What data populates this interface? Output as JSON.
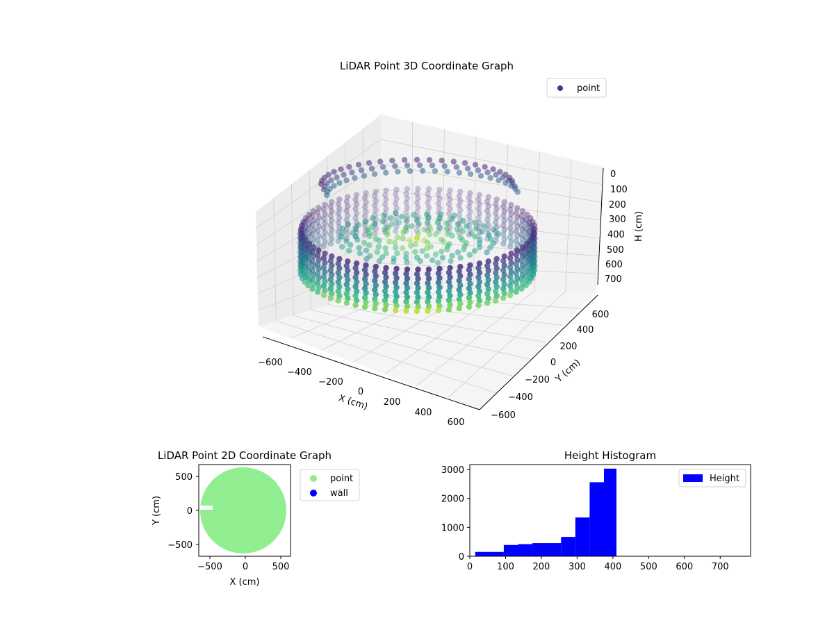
{
  "chart_data": [
    {
      "type": "scatter",
      "title": "LiDAR Point 3D Coordinate Graph",
      "xlabel": "X (cm)",
      "ylabel": "Y (cm)",
      "zlabel": "H (cm)",
      "x_ticks": [
        "−600",
        "−400",
        "−200",
        "0",
        "200",
        "400",
        "600"
      ],
      "y_ticks": [
        "−600",
        "−400",
        "−200",
        "0",
        "200",
        "400",
        "600"
      ],
      "z_ticks": [
        "0",
        "100",
        "200",
        "300",
        "400",
        "500",
        "600",
        "700"
      ],
      "xlim": [
        -650,
        650
      ],
      "ylim": [
        -650,
        650
      ],
      "zlim": [
        0,
        750
      ],
      "z_inverted": true,
      "grid": true,
      "legend": [
        {
          "label": "point",
          "color": "#3b3d87"
        }
      ],
      "legend_position": "top-right",
      "colormap": "viridis",
      "series": [
        {
          "name": "point",
          "shape": "ring of vertical scan columns around a central dome",
          "ring_radius_cm": 580,
          "height_range_cm": [
            30,
            405
          ]
        }
      ]
    },
    {
      "type": "scatter",
      "title": "LiDAR Point 2D Coordinate Graph",
      "xlabel": "X (cm)",
      "ylabel": "Y (cm)",
      "x_ticks": [
        "−500",
        "0",
        "500"
      ],
      "y_ticks": [
        "500",
        "0",
        "−500"
      ],
      "xlim": [
        -680,
        620
      ],
      "ylim": [
        -660,
        660
      ],
      "legend": [
        {
          "label": "point",
          "color": "#90ee90"
        },
        {
          "label": "wall",
          "color": "#0000ff"
        }
      ],
      "legend_position": "outside-right",
      "series": [
        {
          "name": "point",
          "color": "#90ee90",
          "shape": "filled disk",
          "radius_cm": 590
        },
        {
          "name": "wall",
          "color": "#0000ff",
          "values": []
        }
      ]
    },
    {
      "type": "bar",
      "title": "Height Histogram",
      "x_ticks": [
        "0",
        "100",
        "200",
        "300",
        "400",
        "500",
        "600",
        "700"
      ],
      "y_ticks": [
        "0",
        "1000",
        "2000",
        "3000"
      ],
      "xlim": [
        0,
        785
      ],
      "ylim": [
        0,
        3170
      ],
      "legend": [
        {
          "label": "Height",
          "color": "#0000ff"
        }
      ],
      "legend_position": "top-right",
      "color": "#0000ff",
      "bin_edges": [
        15,
        95,
        135,
        175,
        255,
        295,
        335,
        375,
        410
      ],
      "values": [
        150,
        390,
        420,
        455,
        670,
        1340,
        2560,
        3030
      ]
    }
  ]
}
